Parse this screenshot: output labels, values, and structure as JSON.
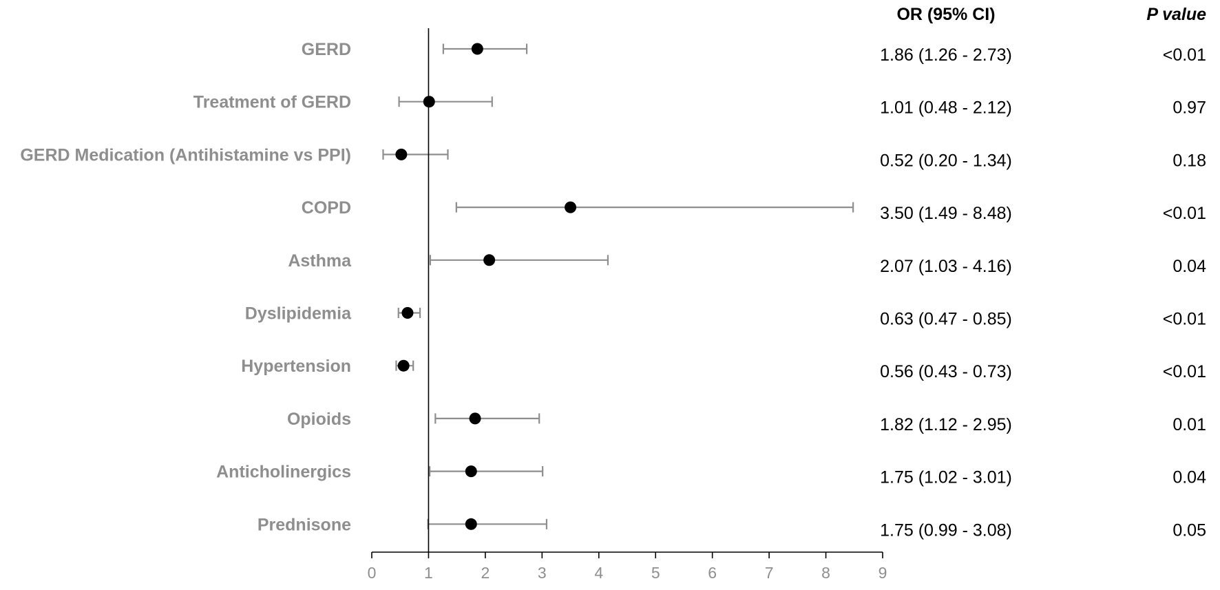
{
  "chart_data": {
    "type": "scatter",
    "subtype": "forest-plot",
    "title": "",
    "xlabel": "",
    "ylabel": "",
    "xlim": [
      0,
      9
    ],
    "x_ticks": [
      "0",
      "1",
      "2",
      "3",
      "4",
      "5",
      "6",
      "7",
      "8",
      "9"
    ],
    "reference_line": 1,
    "grid": false,
    "columns": {
      "or_header": "OR (95% CI)",
      "p_header": "P value"
    },
    "rows": [
      {
        "label": "GERD",
        "or": 1.86,
        "lo": 1.26,
        "hi": 2.73,
        "or_text": "1.86 (1.26 - 2.73)",
        "p": "<0.01"
      },
      {
        "label": "Treatment of GERD",
        "or": 1.01,
        "lo": 0.48,
        "hi": 2.12,
        "or_text": "1.01 (0.48 - 2.12)",
        "p": "0.97"
      },
      {
        "label": "GERD Medication (Antihistamine vs PPI)",
        "or": 0.52,
        "lo": 0.2,
        "hi": 1.34,
        "or_text": "0.52 (0.20 - 1.34)",
        "p": "0.18"
      },
      {
        "label": "COPD",
        "or": 3.5,
        "lo": 1.49,
        "hi": 8.48,
        "or_text": "3.50 (1.49 - 8.48)",
        "p": "<0.01"
      },
      {
        "label": "Asthma",
        "or": 2.07,
        "lo": 1.03,
        "hi": 4.16,
        "or_text": "2.07 (1.03 - 4.16)",
        "p": "0.04"
      },
      {
        "label": "Dyslipidemia",
        "or": 0.63,
        "lo": 0.47,
        "hi": 0.85,
        "or_text": "0.63 (0.47 - 0.85)",
        "p": "<0.01"
      },
      {
        "label": "Hypertension",
        "or": 0.56,
        "lo": 0.43,
        "hi": 0.73,
        "or_text": "0.56 (0.43 - 0.73)",
        "p": "<0.01"
      },
      {
        "label": "Opioids",
        "or": 1.82,
        "lo": 1.12,
        "hi": 2.95,
        "or_text": "1.82 (1.12 - 2.95)",
        "p": "0.01"
      },
      {
        "label": "Anticholinergics",
        "or": 1.75,
        "lo": 1.02,
        "hi": 3.01,
        "or_text": "1.75 (1.02 - 3.01)",
        "p": "0.04"
      },
      {
        "label": "Prednisone",
        "or": 1.75,
        "lo": 0.99,
        "hi": 3.08,
        "or_text": "1.75 (0.99 - 3.08)",
        "p": "0.05"
      }
    ],
    "colors": {
      "point": "#000000",
      "ci_line": "#8e8e8e",
      "label_text": "#8e8e8e",
      "axis": "#000000",
      "reference_line": "#000000"
    }
  }
}
